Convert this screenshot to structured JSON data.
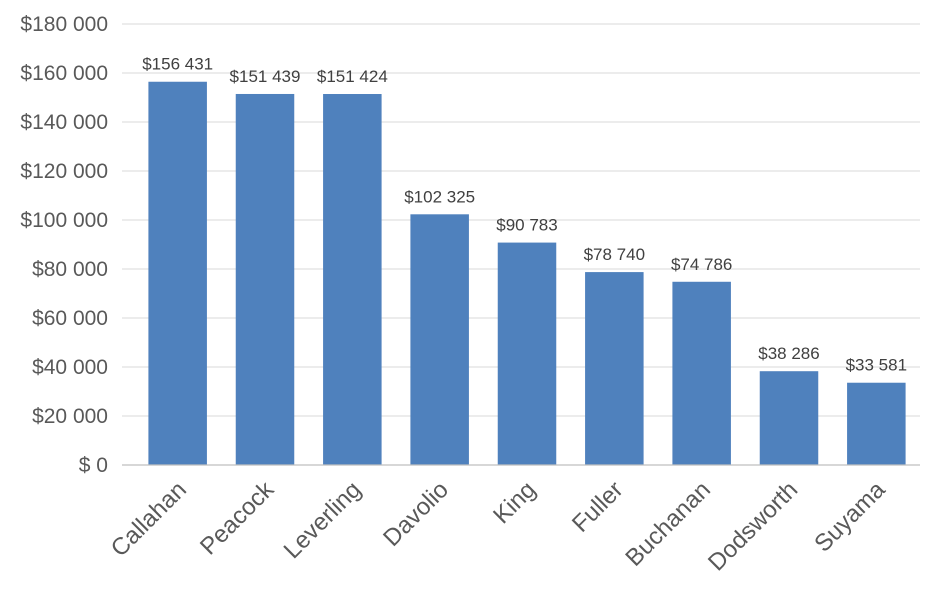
{
  "chart_data": {
    "type": "bar",
    "title": "",
    "xlabel": "",
    "ylabel": "",
    "categories": [
      "Callahan",
      "Peacock",
      "Leverling",
      "Davolio",
      "King",
      "Fuller",
      "Buchanan",
      "Dodsworth",
      "Suyama"
    ],
    "values": [
      156431,
      151439,
      151424,
      102325,
      90783,
      78740,
      74786,
      38286,
      33581
    ],
    "data_labels": [
      "$156 431",
      "$151 439",
      "$151 424",
      "$102 325",
      "$90 783",
      "$78 740",
      "$74 786",
      "$38 286",
      "$33 581"
    ],
    "ylim": [
      0,
      180000
    ],
    "yticks": [
      0,
      20000,
      40000,
      60000,
      80000,
      100000,
      120000,
      140000,
      160000,
      180000
    ],
    "ytick_labels": [
      "$ 0",
      "$20 000",
      "$40 000",
      "$60 000",
      "$80 000",
      "$100 000",
      "$120 000",
      "$140 000",
      "$160 000",
      "$180 000"
    ],
    "grid": true,
    "legend": "none",
    "bar_color": "#4f81bd"
  }
}
